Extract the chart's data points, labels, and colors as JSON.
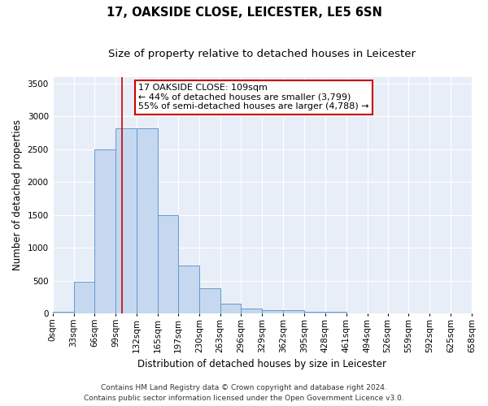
{
  "title1": "17, OAKSIDE CLOSE, LEICESTER, LE5 6SN",
  "title2": "Size of property relative to detached houses in Leicester",
  "xlabel": "Distribution of detached houses by size in Leicester",
  "ylabel": "Number of detached properties",
  "bin_edges": [
    0,
    33,
    66,
    99,
    132,
    165,
    197,
    230,
    263,
    296,
    329,
    362,
    395,
    428,
    461,
    494,
    526,
    559,
    592,
    625,
    658
  ],
  "bar_heights": [
    20,
    480,
    2500,
    2820,
    2820,
    1500,
    730,
    380,
    150,
    80,
    50,
    50,
    30,
    20,
    5,
    0,
    0,
    0,
    0,
    0
  ],
  "bar_color": "#c5d8f0",
  "bar_edge_color": "#6699cc",
  "bar_linewidth": 0.7,
  "vline_x": 109,
  "vline_color": "#cc0000",
  "vline_linewidth": 1.2,
  "annotation_text": "17 OAKSIDE CLOSE: 109sqm\n← 44% of detached houses are smaller (3,799)\n55% of semi-detached houses are larger (4,788) →",
  "annotation_box_edgecolor": "#cc0000",
  "annotation_box_facecolor": "#ffffff",
  "ylim": [
    0,
    3600
  ],
  "yticks": [
    0,
    500,
    1000,
    1500,
    2000,
    2500,
    3000,
    3500
  ],
  "tick_labels": [
    "0sqm",
    "33sqm",
    "66sqm",
    "99sqm",
    "132sqm",
    "165sqm",
    "197sqm",
    "230sqm",
    "263sqm",
    "296sqm",
    "329sqm",
    "362sqm",
    "395sqm",
    "428sqm",
    "461sqm",
    "494sqm",
    "526sqm",
    "559sqm",
    "592sqm",
    "625sqm",
    "658sqm"
  ],
  "fig_background": "#ffffff",
  "ax_background": "#e8eef7",
  "grid_color": "#ffffff",
  "footer1": "Contains HM Land Registry data © Crown copyright and database right 2024.",
  "footer2": "Contains public sector information licensed under the Open Government Licence v3.0.",
  "title1_fontsize": 10.5,
  "title2_fontsize": 9.5,
  "xlabel_fontsize": 8.5,
  "ylabel_fontsize": 8.5,
  "tick_fontsize": 7.5,
  "annotation_fontsize": 8,
  "footer_fontsize": 6.5
}
